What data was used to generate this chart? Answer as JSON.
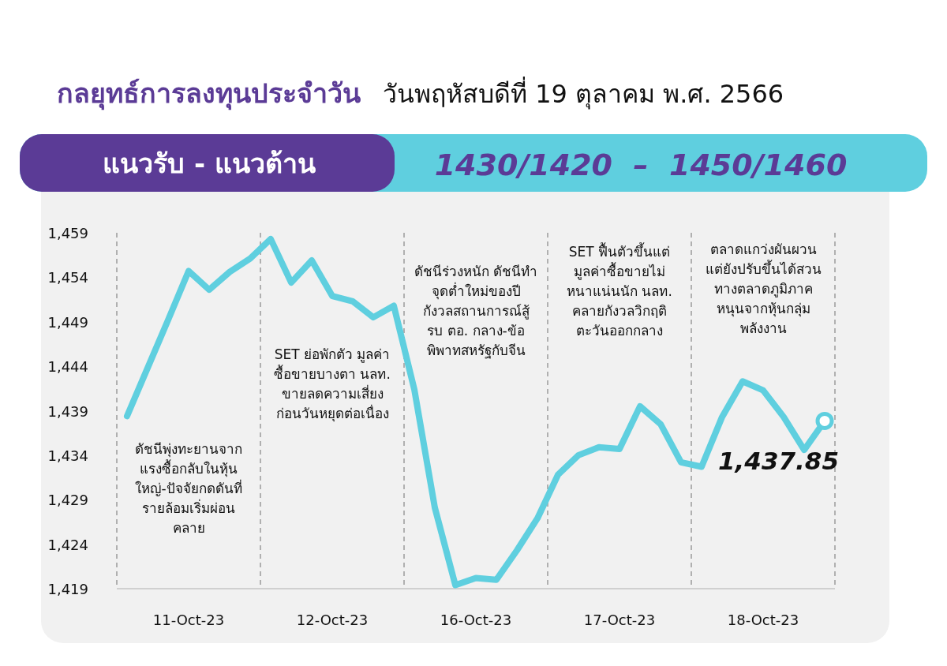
{
  "chart_data": {
    "type": "line",
    "title": "กลยุทธ์การลงทุนประจำวัน",
    "subtitle": "วันพฤหัสบดีที่ 19 ตุลาคม พ.ศ. 2566",
    "annotations": [
      "แนวรับ - แนวต้าน",
      "1430/1420  –  1450/1460",
      "ดัชนีพุ่งทะยานจาก\nแรงซื้อกลับในหุ้น\nใหญ่-ปัจจัยกดดันที่\nรายล้อมเริ่มผ่อน\nคลาย",
      "SET ย่อพักตัว มูลค่า\nซื้อขายบางตา นลท.\nขายลดความเสี่ยง\nก่อนวันหยุดต่อเนื่อง",
      "ดัชนีร่วงหนัก ดัชนีทำ\nจุดต่ำใหม่ของปี\nกังวลสถานการณ์สู้\nรบ ตอ. กลาง-ข้อ\nพิพาทสหรัฐกับจีน",
      "SET ฟื้นตัวขึ้นแต่\nมูลค่าซื้อขายไม่\nหนาแน่นนัก นลท.\nคลายกังวลวิกฤติ\nตะวันออกกลาง",
      "ตลาดแกว่งผันผวน\nแต่ยังปรับขึ้นได้สวน\nทางตลาดภูมิภาค\nหนุนจากหุ้นกลุ่ม\nพลังงาน"
    ],
    "categories": [
      null,
      null,
      null,
      "11-Oct-23",
      null,
      null,
      null,
      null,
      null,
      null,
      "12-Oct-23",
      null,
      null,
      null,
      null,
      null,
      null,
      "16-Oct-23",
      null,
      null,
      null,
      null,
      null,
      null,
      "17-Oct-23",
      null,
      null,
      null,
      null,
      null,
      null,
      "18-Oct-23",
      null,
      null,
      null
    ],
    "series": [
      {
        "color": "#5fcfdf",
        "values": [
          1438.4,
          1443.8,
          1449.2,
          1454.7,
          1452.6,
          1454.6,
          1456.1,
          1458.3,
          1453.4,
          1455.9,
          1451.9,
          1451.3,
          1449.5,
          1450.8,
          1441.4,
          1428.1,
          1419.4,
          1420.2,
          1420.0,
          1423.3,
          1426.9,
          1431.8,
          1434.0,
          1434.9,
          1434.7,
          1439.5,
          1437.5,
          1433.2,
          1432.7,
          1438.3,
          1442.3,
          1441.3,
          1438.3,
          1434.6,
          1437.85
        ],
        "value_labels": [
          null,
          null,
          null,
          null,
          null,
          null,
          null,
          null,
          null,
          null,
          null,
          null,
          null,
          null,
          null,
          null,
          null,
          null,
          null,
          null,
          null,
          null,
          null,
          null,
          null,
          null,
          null,
          null,
          null,
          null,
          null,
          null,
          null,
          null,
          "1,437.85"
        ]
      }
    ],
    "ylim": [
      1419,
      1459
    ],
    "yticks": [
      {
        "value": 1419,
        "label": "1,419"
      },
      {
        "value": 1424,
        "label": "1,424"
      },
      {
        "value": 1429,
        "label": "1,429"
      },
      {
        "value": 1434,
        "label": "1,434"
      },
      {
        "value": 1439,
        "label": "1,439"
      },
      {
        "value": 1444,
        "label": "1,444"
      },
      {
        "value": 1449,
        "label": "1,449"
      },
      {
        "value": 1454,
        "label": "1,454"
      },
      {
        "value": 1459,
        "label": "1,459"
      }
    ],
    "grid": "x"
  }
}
